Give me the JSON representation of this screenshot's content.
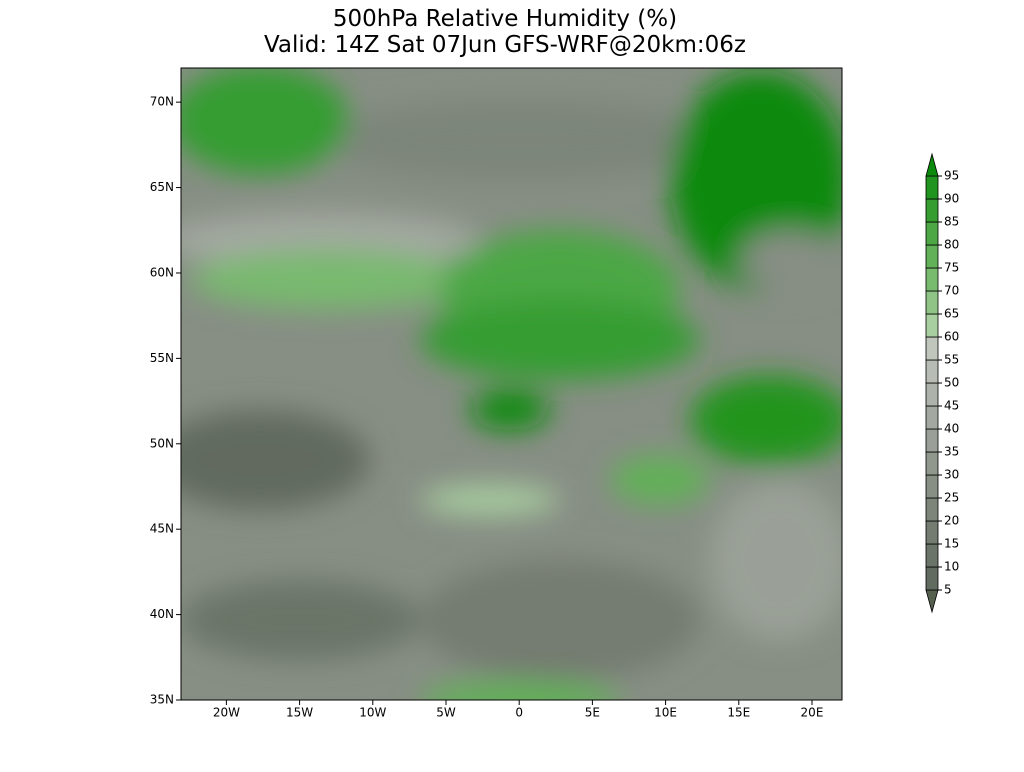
{
  "map": {
    "title": [
      "500hPa Relative Humidity (%)",
      "Valid: 14Z Sat 07Jun GFS-WRF@20km:06z"
    ],
    "lat_ticks": [
      {
        "value": 35,
        "label": "35N"
      },
      {
        "value": 40,
        "label": "40N"
      },
      {
        "value": 45,
        "label": "45N"
      },
      {
        "value": 50,
        "label": "50N"
      },
      {
        "value": 55,
        "label": "55N"
      },
      {
        "value": 60,
        "label": "60N"
      },
      {
        "value": 65,
        "label": "65N"
      },
      {
        "value": 70,
        "label": "70N"
      }
    ],
    "lon_ticks": [
      {
        "value": -20,
        "label": "20W"
      },
      {
        "value": -15,
        "label": "15W"
      },
      {
        "value": -10,
        "label": "10W"
      },
      {
        "value": -5,
        "label": "5W"
      },
      0,
      {
        "value": 5,
        "label": "5E"
      },
      {
        "value": 10,
        "label": "10E"
      },
      {
        "value": 15,
        "label": "15E"
      },
      {
        "value": 20,
        "label": "20E"
      }
    ],
    "lat_range": [
      35,
      72
    ],
    "lon_range": [
      -23.1,
      22.05
    ]
  },
  "colorbar": {
    "levels": [
      5,
      10,
      15,
      20,
      25,
      30,
      35,
      40,
      45,
      50,
      55,
      60,
      65,
      70,
      75,
      80,
      85,
      90,
      95
    ],
    "colors": [
      "#56604f",
      "#626b5f",
      "#6b7468",
      "#747c71",
      "#7d857a",
      "#878e84",
      "#90978d",
      "#9aa097",
      "#a3a9a0",
      "#adb2aa",
      "#b7bcb4",
      "#c1c6bd",
      "#a8cfa0",
      "#8fc486",
      "#78ba6e",
      "#62b058",
      "#4ca744",
      "#369d31",
      "#21941f",
      "#0c8a0c"
    ]
  }
}
